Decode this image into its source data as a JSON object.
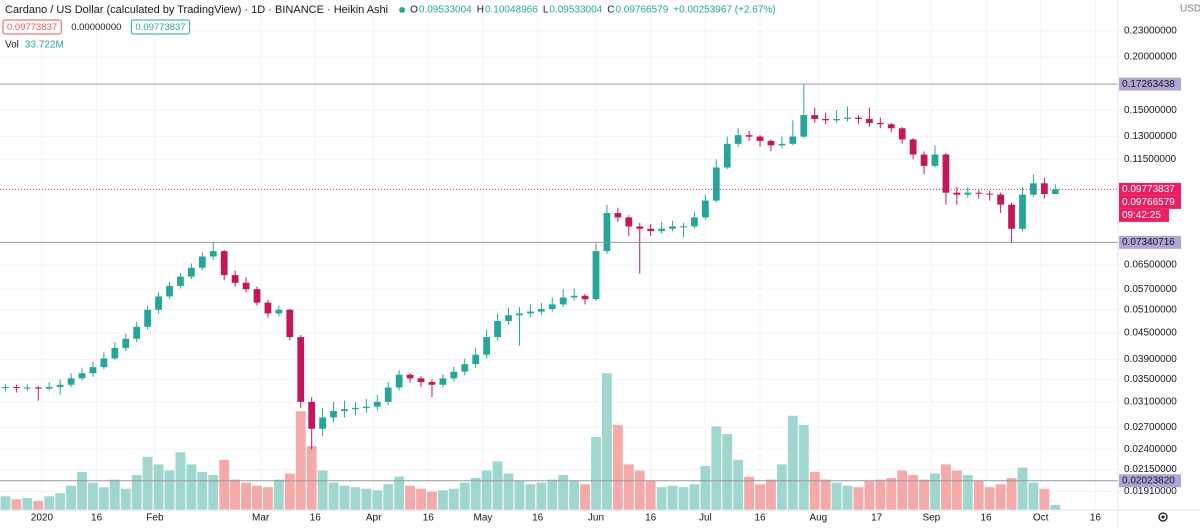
{
  "chart_data": {
    "type": "candlestick",
    "title": "Cardano / US Dollar (calculated by TradingView) · 1D · BINANCE · Heikin Ashi",
    "ohlc_labels": [
      "O",
      "H",
      "L",
      "C"
    ],
    "change": "+0.00253967 (+2.67%)",
    "quote_boxes": [
      "0.09773837",
      "0.00000000",
      "0.09773837"
    ],
    "volume_title": "Vol",
    "volume_value_label": "33.722M",
    "axis_unit": "USD",
    "countdown": "09:42:25",
    "log_scale": true,
    "grid": true,
    "up_color": "#26a69a",
    "down_color": "#c2185b",
    "volume_up_color": "#9fd6cf",
    "volume_down_color": "#f3aaa8",
    "xlim": [
      -11.5,
      295.2
    ],
    "xticks": [
      {
        "value": 0,
        "label": "2020"
      },
      {
        "value": 15,
        "label": "16"
      },
      {
        "value": 31,
        "label": "Feb"
      },
      {
        "value": 60,
        "label": "Mar"
      },
      {
        "value": 75,
        "label": "16"
      },
      {
        "value": 91,
        "label": "Apr"
      },
      {
        "value": 106,
        "label": "16"
      },
      {
        "value": 121,
        "label": "May"
      },
      {
        "value": 136,
        "label": "16"
      },
      {
        "value": 152,
        "label": "Jun"
      },
      {
        "value": 167,
        "label": "16"
      },
      {
        "value": 182,
        "label": "Jul"
      },
      {
        "value": 197,
        "label": "16"
      },
      {
        "value": 213,
        "label": "Aug"
      },
      {
        "value": 229,
        "label": "17"
      },
      {
        "value": 244,
        "label": "Sep"
      },
      {
        "value": 259,
        "label": "16"
      },
      {
        "value": 274,
        "label": "Oct"
      },
      {
        "value": 289,
        "label": "16"
      }
    ],
    "ylim": [
      0.01728,
      0.272
    ],
    "yticks": [
      {
        "value": 0.23,
        "label": "0.23000000"
      },
      {
        "value": 0.2,
        "label": "0.20000000"
      },
      {
        "value": 0.15,
        "label": "0.15000000"
      },
      {
        "value": 0.13,
        "label": "0.13000000"
      },
      {
        "value": 0.115,
        "label": "0.11500000"
      },
      {
        "value": 0.065,
        "label": "0.06500000"
      },
      {
        "value": 0.057,
        "label": "0.05700000"
      },
      {
        "value": 0.051,
        "label": "0.05100000"
      },
      {
        "value": 0.045,
        "label": "0.04500000"
      },
      {
        "value": 0.039,
        "label": "0.03900000"
      },
      {
        "value": 0.035,
        "label": "0.03500000"
      },
      {
        "value": 0.031,
        "label": "0.03100000"
      },
      {
        "value": 0.027,
        "label": "0.02700000"
      },
      {
        "value": 0.024,
        "label": "0.02400000"
      },
      {
        "value": 0.0215,
        "label": "0.02150000"
      },
      {
        "value": 0.0191,
        "label": "0.01910000"
      }
    ],
    "y2lim": [
      0,
      1500
    ],
    "price_lines": [
      {
        "value": 0.17263438,
        "label": "0.17263438",
        "color": "#b2a4d4",
        "line": "solid"
      },
      {
        "value": 0.09773837,
        "label": "0.09773837",
        "color": "#e91e63",
        "line": "dotted"
      },
      {
        "value": 0.07340716,
        "label": "0.07340716",
        "color": "#b2a4d4",
        "line": "solid"
      },
      {
        "value": 0.0202382,
        "label": "0.02023820",
        "color": "#b2a4d4",
        "line": "solid"
      },
      {
        "value": 0.09766579,
        "label": "0.09766579",
        "color": "#e91e63",
        "line": "none"
      }
    ],
    "x": [
      -10,
      -7,
      -4,
      -1,
      2,
      5,
      8,
      11,
      14,
      17,
      20,
      23,
      26,
      29,
      32,
      35,
      38,
      41,
      44,
      47,
      50,
      53,
      56,
      59,
      62,
      65,
      68,
      71,
      74,
      77,
      80,
      83,
      86,
      89,
      92,
      95,
      98,
      101,
      104,
      107,
      110,
      113,
      116,
      119,
      122,
      125,
      128,
      131,
      134,
      137,
      140,
      143,
      146,
      149,
      152,
      155,
      158,
      161,
      164,
      167,
      170,
      173,
      176,
      179,
      182,
      185,
      188,
      191,
      194,
      197,
      200,
      203,
      206,
      209,
      212,
      215,
      218,
      221,
      224,
      227,
      230,
      233,
      236,
      239,
      242,
      245,
      248,
      251,
      254,
      257,
      260,
      263,
      266,
      269,
      272,
      275,
      278
    ],
    "candles": [
      [
        0.0334,
        0.0342,
        0.0328,
        0.0336
      ],
      [
        0.0336,
        0.034,
        0.0326,
        0.0334
      ],
      [
        0.0334,
        0.0341,
        0.0329,
        0.0335
      ],
      [
        0.0335,
        0.0338,
        0.0312,
        0.0333
      ],
      [
        0.0333,
        0.0345,
        0.033,
        0.0336
      ],
      [
        0.0336,
        0.035,
        0.0322,
        0.034
      ],
      [
        0.034,
        0.0362,
        0.0336,
        0.0352
      ],
      [
        0.0352,
        0.0372,
        0.0348,
        0.0362
      ],
      [
        0.0362,
        0.0385,
        0.0355,
        0.0374
      ],
      [
        0.0374,
        0.0405,
        0.037,
        0.0392
      ],
      [
        0.0392,
        0.0428,
        0.0388,
        0.0415
      ],
      [
        0.0415,
        0.0448,
        0.0408,
        0.0436
      ],
      [
        0.0436,
        0.0478,
        0.0428,
        0.0465
      ],
      [
        0.0465,
        0.0522,
        0.0458,
        0.051
      ],
      [
        0.051,
        0.056,
        0.05,
        0.0548
      ],
      [
        0.0548,
        0.0592,
        0.054,
        0.058
      ],
      [
        0.058,
        0.0622,
        0.0572,
        0.061
      ],
      [
        0.061,
        0.0655,
        0.0602,
        0.064
      ],
      [
        0.064,
        0.0695,
        0.0632,
        0.068
      ],
      [
        0.068,
        0.0734,
        0.0668,
        0.07
      ],
      [
        0.07,
        0.0705,
        0.0598,
        0.0615
      ],
      [
        0.0615,
        0.063,
        0.0578,
        0.059
      ],
      [
        0.059,
        0.0608,
        0.056,
        0.057
      ],
      [
        0.057,
        0.0578,
        0.0522,
        0.053
      ],
      [
        0.053,
        0.0538,
        0.0488,
        0.05
      ],
      [
        0.05,
        0.0522,
        0.0492,
        0.051
      ],
      [
        0.051,
        0.0512,
        0.0432,
        0.044
      ],
      [
        0.044,
        0.0445,
        0.03,
        0.031
      ],
      [
        0.031,
        0.0318,
        0.024,
        0.0268
      ],
      [
        0.0268,
        0.03,
        0.0258,
        0.0285
      ],
      [
        0.0285,
        0.031,
        0.0278,
        0.0295
      ],
      [
        0.0295,
        0.0312,
        0.0285,
        0.0298
      ],
      [
        0.0298,
        0.031,
        0.0288,
        0.03
      ],
      [
        0.03,
        0.0315,
        0.0292,
        0.0302
      ],
      [
        0.0302,
        0.0322,
        0.0296,
        0.031
      ],
      [
        0.031,
        0.0345,
        0.0305,
        0.0335
      ],
      [
        0.0335,
        0.0368,
        0.033,
        0.0359
      ],
      [
        0.0359,
        0.0362,
        0.0344,
        0.0352
      ],
      [
        0.0352,
        0.0356,
        0.0336,
        0.0345
      ],
      [
        0.0345,
        0.035,
        0.0318,
        0.034
      ],
      [
        0.034,
        0.036,
        0.0335,
        0.0352
      ],
      [
        0.0352,
        0.0375,
        0.0346,
        0.0365
      ],
      [
        0.0365,
        0.0392,
        0.0358,
        0.038
      ],
      [
        0.038,
        0.0415,
        0.0372,
        0.04
      ],
      [
        0.04,
        0.0458,
        0.0392,
        0.044
      ],
      [
        0.044,
        0.05,
        0.0432,
        0.048
      ],
      [
        0.048,
        0.0515,
        0.047,
        0.0495
      ],
      [
        0.0495,
        0.0518,
        0.042,
        0.05
      ],
      [
        0.05,
        0.0525,
        0.049,
        0.0505
      ],
      [
        0.0505,
        0.053,
        0.0495,
        0.0512
      ],
      [
        0.0512,
        0.0545,
        0.0505,
        0.0525
      ],
      [
        0.0525,
        0.057,
        0.0518,
        0.0545
      ],
      [
        0.0545,
        0.0572,
        0.0535,
        0.055
      ],
      [
        0.055,
        0.0556,
        0.0525,
        0.054
      ],
      [
        0.054,
        0.073,
        0.0535,
        0.07
      ],
      [
        0.07,
        0.09,
        0.069,
        0.086
      ],
      [
        0.086,
        0.0885,
        0.082,
        0.084
      ],
      [
        0.084,
        0.085,
        0.076,
        0.08
      ],
      [
        0.08,
        0.0815,
        0.062,
        0.079
      ],
      [
        0.079,
        0.081,
        0.076,
        0.078
      ],
      [
        0.078,
        0.082,
        0.077,
        0.079
      ],
      [
        0.079,
        0.0825,
        0.078,
        0.08
      ],
      [
        0.08,
        0.0815,
        0.0755,
        0.08
      ],
      [
        0.08,
        0.0865,
        0.079,
        0.084
      ],
      [
        0.084,
        0.095,
        0.083,
        0.092
      ],
      [
        0.092,
        0.115,
        0.091,
        0.11
      ],
      [
        0.11,
        0.13,
        0.109,
        0.125
      ],
      [
        0.125,
        0.136,
        0.123,
        0.131
      ],
      [
        0.131,
        0.134,
        0.127,
        0.13
      ],
      [
        0.13,
        0.131,
        0.123,
        0.127
      ],
      [
        0.127,
        0.128,
        0.12,
        0.124
      ],
      [
        0.124,
        0.13,
        0.122,
        0.125
      ],
      [
        0.125,
        0.142,
        0.124,
        0.13
      ],
      [
        0.13,
        0.1726,
        0.129,
        0.146
      ],
      [
        0.146,
        0.152,
        0.14,
        0.143
      ],
      [
        0.143,
        0.148,
        0.139,
        0.142
      ],
      [
        0.142,
        0.15,
        0.14,
        0.143
      ],
      [
        0.143,
        0.153,
        0.141,
        0.144
      ],
      [
        0.144,
        0.146,
        0.139,
        0.143
      ],
      [
        0.143,
        0.152,
        0.137,
        0.14
      ],
      [
        0.14,
        0.144,
        0.136,
        0.139
      ],
      [
        0.139,
        0.14,
        0.133,
        0.136
      ],
      [
        0.136,
        0.137,
        0.125,
        0.128
      ],
      [
        0.128,
        0.129,
        0.115,
        0.118
      ],
      [
        0.118,
        0.12,
        0.106,
        0.111
      ],
      [
        0.111,
        0.124,
        0.11,
        0.118
      ],
      [
        0.118,
        0.119,
        0.09,
        0.096
      ],
      [
        0.096,
        0.099,
        0.09,
        0.095
      ],
      [
        0.095,
        0.099,
        0.0935,
        0.096
      ],
      [
        0.096,
        0.0975,
        0.093,
        0.0955
      ],
      [
        0.0955,
        0.097,
        0.092,
        0.095
      ],
      [
        0.095,
        0.096,
        0.086,
        0.09
      ],
      [
        0.09,
        0.091,
        0.0734,
        0.079
      ],
      [
        0.079,
        0.099,
        0.078,
        0.095
      ],
      [
        0.095,
        0.106,
        0.094,
        0.101
      ],
      [
        0.101,
        0.104,
        0.093,
        0.0953
      ],
      [
        0.09533004,
        0.10048966,
        0.09533004,
        0.09766579
      ]
    ],
    "volume": [
      90,
      70,
      80,
      60,
      90,
      110,
      160,
      250,
      180,
      150,
      200,
      140,
      230,
      350,
      300,
      260,
      380,
      300,
      250,
      230,
      330,
      200,
      180,
      160,
      150,
      200,
      240,
      650,
      420,
      260,
      180,
      160,
      150,
      140,
      130,
      170,
      220,
      160,
      140,
      120,
      130,
      140,
      180,
      210,
      260,
      320,
      240,
      190,
      170,
      180,
      200,
      230,
      190,
      170,
      480,
      900,
      560,
      300,
      260,
      190,
      150,
      160,
      150,
      170,
      290,
      550,
      500,
      330,
      220,
      170,
      200,
      300,
      620,
      560,
      250,
      200,
      180,
      160,
      150,
      190,
      200,
      210,
      260,
      230,
      200,
      240,
      300,
      260,
      230,
      190,
      150,
      170,
      210,
      280,
      180,
      140,
      33.722
    ]
  }
}
